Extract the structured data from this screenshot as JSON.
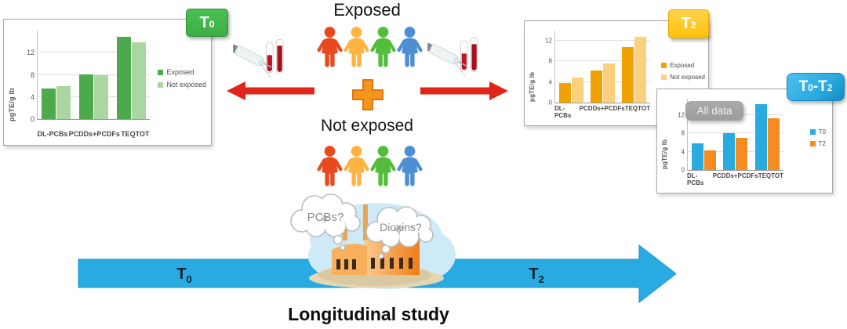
{
  "colors": {
    "badge_t0_bg": "#3BAE45",
    "badge_t2_bg": "#FFC20E",
    "badge_t0t2_bg": "#29ABE2",
    "all_data_bg": "#9C9C9C",
    "red_arrow": "#E1251B",
    "plus_fill": "#F7941E",
    "plus_stroke": "#DE7514",
    "timeline_arrow": "#29ABE2",
    "cloud_stroke": "#BDBDBD",
    "cloud_text": "#8C8C8C",
    "people": [
      "#E8491F",
      "#FFB340",
      "#54BE3C",
      "#4D8FD3"
    ]
  },
  "icons": {
    "person": "person-icon",
    "syringe_tubes": "syringe-blood-tubes-icon",
    "plus": "plus-cross-icon",
    "red_arrow_left": "red-arrow-left-icon",
    "red_arrow_right": "red-arrow-right-icon",
    "factory": "factory-icon",
    "thought_cloud": "thought-cloud-icon",
    "timeline_arrow": "timeline-arrow-icon"
  },
  "center": {
    "exposed_label": "Exposed",
    "not_exposed_label": "Not exposed"
  },
  "clouds": {
    "pcbs": "PCBs?",
    "dioxins": "Dioxins?"
  },
  "badges": {
    "t0": {
      "main": "T",
      "sub": "0"
    },
    "t2": {
      "main": "T",
      "sub": "2"
    },
    "t0t2": {
      "p1": "T",
      "s1": "0",
      "sep": "-",
      "p2": "T",
      "s2": "2"
    },
    "all_data": "All data"
  },
  "timeline": {
    "start": {
      "main": "T",
      "sub": "0"
    },
    "end": {
      "main": "T",
      "sub": "2"
    },
    "caption": "Longitudinal study"
  },
  "chart_data": [
    {
      "id": "t0",
      "type": "bar",
      "title": "T0",
      "categories": [
        "DL-PCBs",
        "PCDDs+PCDFs",
        "TEQTOT"
      ],
      "series": [
        {
          "name": "Exposed",
          "color": "#4CA94C",
          "values": [
            5.5,
            8.1,
            14.8
          ]
        },
        {
          "name": "Not exposed",
          "color": "#A9D6A1",
          "values": [
            5.9,
            7.9,
            13.9
          ]
        }
      ],
      "ylabel": "pgTE/g lb",
      "xlabel": "",
      "yticks": [
        0,
        4,
        8,
        12
      ],
      "ylim": [
        0,
        16
      ],
      "grid": true,
      "legend_position": "right"
    },
    {
      "id": "t2",
      "type": "bar",
      "title": "T2",
      "categories": [
        "DL-PCBs",
        "PCDDs+PCDFs",
        "TEQTOT"
      ],
      "series": [
        {
          "name": "Exposed",
          "color": "#F0A202",
          "values": [
            3.8,
            6.2,
            10.8
          ]
        },
        {
          "name": "Not exposed",
          "color": "#FBD17F",
          "values": [
            4.8,
            7.6,
            12.8
          ]
        }
      ],
      "ylabel": "pgTE/g lb",
      "xlabel": "",
      "yticks": [
        0,
        4,
        8,
        12
      ],
      "ylim": [
        0,
        14
      ],
      "grid": true,
      "legend_position": "right"
    },
    {
      "id": "t0-t2",
      "type": "bar",
      "title": "T0-T2 All data",
      "categories": [
        "DL-PCBs",
        "PCDDs+PCDFs",
        "TEQTOT"
      ],
      "series": [
        {
          "name": "T0",
          "color": "#29ABE2",
          "values": [
            5.8,
            8.0,
            14.3
          ]
        },
        {
          "name": "T2",
          "color": "#F68B1F",
          "values": [
            4.3,
            7.0,
            11.3
          ]
        }
      ],
      "ylabel": "pgTE/g lb",
      "xlabel": "",
      "yticks": [
        0,
        4,
        8,
        12
      ],
      "ylim": [
        0,
        15.5
      ],
      "grid": true,
      "legend_position": "right"
    }
  ]
}
